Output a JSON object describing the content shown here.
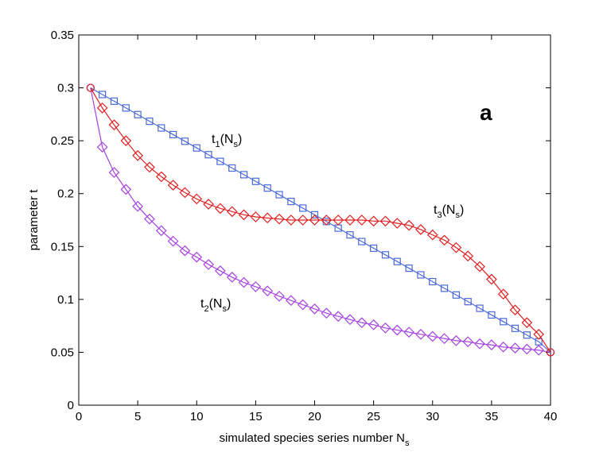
{
  "chart_data": {
    "type": "line",
    "panel_label": "a",
    "xlabel_main": "simulated species series number N",
    "xlabel_sub": "s",
    "ylabel": "parameter t",
    "xlim": [
      0,
      40
    ],
    "ylim": [
      0,
      0.35
    ],
    "xticks": [
      0,
      5,
      10,
      15,
      20,
      25,
      30,
      35,
      40
    ],
    "xtick_labels": [
      "0",
      "5",
      "10",
      "15",
      "20",
      "25",
      "30",
      "35",
      "40"
    ],
    "yticks": [
      0,
      0.05,
      0.1,
      0.15,
      0.2,
      0.25,
      0.3,
      0.35
    ],
    "ytick_labels": [
      "0",
      "0.05",
      "0.1",
      "0.15",
      "0.2",
      "0.25",
      "0.3",
      "0.35"
    ],
    "x": [
      1,
      2,
      3,
      4,
      5,
      6,
      7,
      8,
      9,
      10,
      11,
      12,
      13,
      14,
      15,
      16,
      17,
      18,
      19,
      20,
      21,
      22,
      23,
      24,
      25,
      26,
      27,
      28,
      29,
      30,
      31,
      32,
      33,
      34,
      35,
      36,
      37,
      38,
      39,
      40
    ],
    "series": [
      {
        "name": "t1",
        "label_main": "t",
        "label_sub1": "1",
        "label_mid": "(N",
        "label_sub2": "s",
        "label_end": ")",
        "color": "#4a6ad8",
        "marker": "square",
        "values": [
          0.3,
          0.2937,
          0.2874,
          0.281,
          0.2747,
          0.2684,
          0.2621,
          0.2558,
          0.2495,
          0.2432,
          0.2368,
          0.2305,
          0.2242,
          0.2179,
          0.2116,
          0.2053,
          0.199,
          0.1926,
          0.1863,
          0.18,
          0.1737,
          0.1674,
          0.161,
          0.1547,
          0.1484,
          0.1421,
          0.1358,
          0.1295,
          0.1232,
          0.1168,
          0.1105,
          0.1042,
          0.0979,
          0.0916,
          0.0853,
          0.079,
          0.0726,
          0.0663,
          0.06,
          0.05
        ]
      },
      {
        "name": "t2",
        "label_main": "t",
        "label_sub1": "2",
        "label_mid": "(N",
        "label_sub2": "s",
        "label_end": ")",
        "color": "#a642e0",
        "marker": "diamond",
        "values": [
          0.3,
          0.244,
          0.22,
          0.204,
          0.188,
          0.176,
          0.165,
          0.155,
          0.146,
          0.14,
          0.133,
          0.127,
          0.121,
          0.116,
          0.112,
          0.108,
          0.103,
          0.099,
          0.095,
          0.091,
          0.087,
          0.084,
          0.081,
          0.078,
          0.076,
          0.073,
          0.071,
          0.069,
          0.067,
          0.065,
          0.063,
          0.061,
          0.06,
          0.058,
          0.057,
          0.055,
          0.054,
          0.053,
          0.052,
          0.05
        ]
      },
      {
        "name": "t3",
        "label_main": "t",
        "label_sub1": "3",
        "label_mid": "(N",
        "label_sub2": "s",
        "label_end": ")",
        "color": "#e02020",
        "marker": "diamond",
        "values": [
          0.3,
          0.281,
          0.265,
          0.25,
          0.236,
          0.225,
          0.216,
          0.208,
          0.201,
          0.195,
          0.19,
          0.186,
          0.183,
          0.18,
          0.178,
          0.177,
          0.176,
          0.175,
          0.175,
          0.175,
          0.175,
          0.175,
          0.175,
          0.175,
          0.174,
          0.174,
          0.172,
          0.17,
          0.166,
          0.161,
          0.156,
          0.149,
          0.141,
          0.131,
          0.119,
          0.105,
          0.09,
          0.078,
          0.067,
          0.05
        ]
      }
    ]
  }
}
